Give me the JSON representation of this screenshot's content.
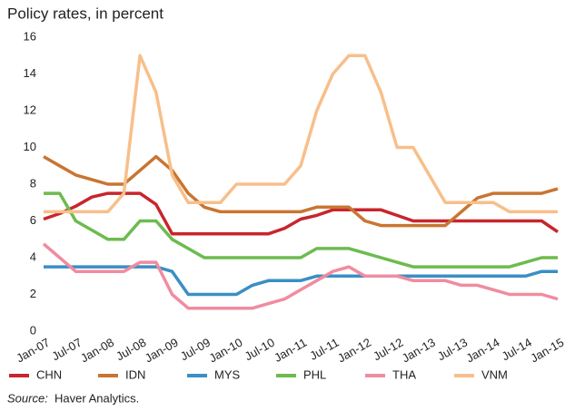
{
  "chart_data": {
    "type": "line",
    "title": "Policy rates, in percent",
    "categories": [
      "Jan-07",
      null,
      "Jul-07",
      null,
      "Jan-08",
      null,
      "Jul-08",
      null,
      "Jan-09",
      null,
      "Jul-09",
      null,
      "Jan-10",
      null,
      "Jul-10",
      null,
      "Jan-11",
      null,
      "Jul-11",
      null,
      "Jan-12",
      null,
      "Jul-12",
      null,
      "Jan-13",
      null,
      "Jul-13",
      null,
      "Jan-14",
      null,
      "Jul-14",
      null,
      "Jan-15"
    ],
    "series": [
      {
        "name": "CHN",
        "color": "#c8252c",
        "values": [
          6.1,
          6.4,
          6.8,
          7.3,
          7.5,
          7.5,
          7.5,
          6.9,
          5.3,
          5.3,
          5.3,
          5.3,
          5.3,
          5.3,
          5.3,
          5.6,
          6.1,
          6.3,
          6.6,
          6.6,
          6.6,
          6.6,
          6.3,
          6.0,
          6.0,
          6.0,
          6.0,
          6.0,
          6.0,
          6.0,
          6.0,
          6.0,
          5.4
        ]
      },
      {
        "name": "IDN",
        "color": "#c87533",
        "values": [
          9.5,
          9.0,
          8.5,
          8.25,
          8.0,
          8.0,
          8.75,
          9.5,
          8.75,
          7.5,
          6.75,
          6.5,
          6.5,
          6.5,
          6.5,
          6.5,
          6.5,
          6.75,
          6.75,
          6.75,
          6.0,
          5.75,
          5.75,
          5.75,
          5.75,
          5.75,
          6.5,
          7.25,
          7.5,
          7.5,
          7.5,
          7.5,
          7.75
        ]
      },
      {
        "name": "MYS",
        "color": "#3a8fc4",
        "values": [
          3.5,
          3.5,
          3.5,
          3.5,
          3.5,
          3.5,
          3.5,
          3.5,
          3.25,
          2.0,
          2.0,
          2.0,
          2.0,
          2.5,
          2.75,
          2.75,
          2.75,
          3.0,
          3.0,
          3.0,
          3.0,
          3.0,
          3.0,
          3.0,
          3.0,
          3.0,
          3.0,
          3.0,
          3.0,
          3.0,
          3.0,
          3.25,
          3.25
        ]
      },
      {
        "name": "PHL",
        "color": "#6dbb4f",
        "values": [
          7.5,
          7.5,
          6.0,
          5.5,
          5.0,
          5.0,
          6.0,
          6.0,
          5.0,
          4.5,
          4.0,
          4.0,
          4.0,
          4.0,
          4.0,
          4.0,
          4.0,
          4.5,
          4.5,
          4.5,
          4.25,
          4.0,
          3.75,
          3.5,
          3.5,
          3.5,
          3.5,
          3.5,
          3.5,
          3.5,
          3.75,
          4.0,
          4.0
        ]
      },
      {
        "name": "THA",
        "color": "#f08ca0",
        "values": [
          4.75,
          4.0,
          3.25,
          3.25,
          3.25,
          3.25,
          3.75,
          3.75,
          2.0,
          1.25,
          1.25,
          1.25,
          1.25,
          1.25,
          1.5,
          1.75,
          2.25,
          2.75,
          3.25,
          3.5,
          3.0,
          3.0,
          3.0,
          2.75,
          2.75,
          2.75,
          2.5,
          2.5,
          2.25,
          2.0,
          2.0,
          2.0,
          1.75
        ]
      },
      {
        "name": "VNM",
        "color": "#f8bf8a",
        "values": [
          6.5,
          6.5,
          6.5,
          6.5,
          6.5,
          7.5,
          15,
          13,
          8.5,
          7.0,
          7.0,
          7.0,
          8.0,
          8.0,
          8.0,
          8.0,
          9.0,
          12,
          14,
          15,
          15,
          13,
          10,
          10,
          8.5,
          7.0,
          7.0,
          7.0,
          7.0,
          6.5,
          6.5,
          6.5,
          6.5
        ]
      }
    ],
    "ylim": [
      0,
      16
    ],
    "yticks": [
      0,
      2,
      4,
      6,
      8,
      10,
      12,
      14,
      16
    ],
    "grid": false,
    "legend": "bottom",
    "source_label": "Source:",
    "source": "Haver Analytics."
  }
}
